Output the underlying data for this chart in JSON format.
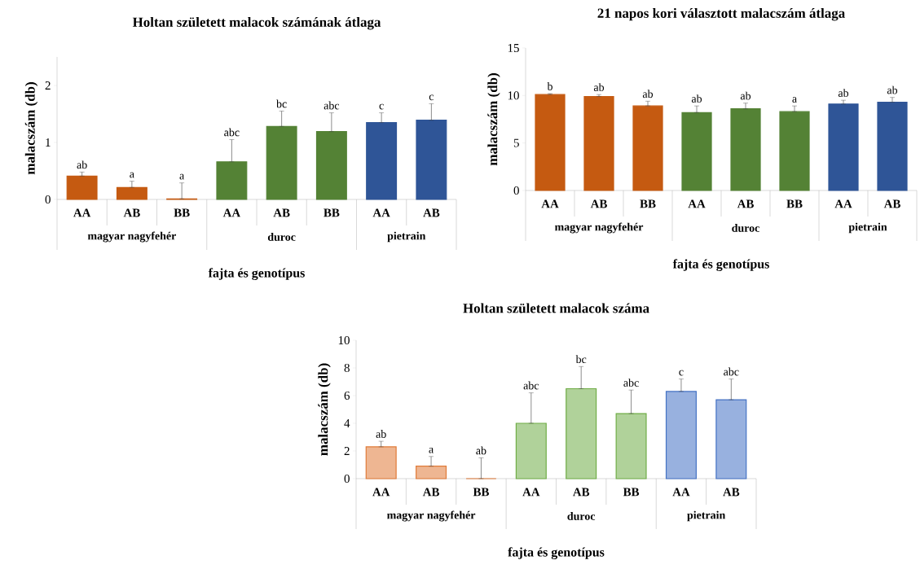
{
  "chart_data": [
    {
      "type": "bar",
      "title": "Holtan született malacok számának átlaga",
      "xlabel": "fajta és genotípus",
      "ylabel": "malacszám (db)",
      "categories": [
        "AA",
        "AB",
        "BB",
        "AA",
        "AB",
        "BB",
        "AA",
        "AB"
      ],
      "values": [
        0.41,
        0.21,
        0.01,
        0.66,
        1.28,
        1.19,
        1.35,
        1.39
      ],
      "errors": [
        [
          0.41,
          0.48
        ],
        [
          0.21,
          0.32
        ],
        [
          0.01,
          0.29
        ],
        [
          0.66,
          1.05
        ],
        [
          1.28,
          1.55
        ],
        [
          1.19,
          1.52
        ],
        [
          1.35,
          1.52
        ],
        [
          1.39,
          1.68
        ]
      ],
      "colors": [
        "#c55a11",
        "#c55a11",
        "#c55a11",
        "#548235",
        "#548235",
        "#548235",
        "#2f5597",
        "#2f5597"
      ],
      "value_labels": [
        "ab",
        "a",
        "a",
        "abc",
        "bc",
        "abc",
        "c",
        "c"
      ],
      "annotations": [
        "magyar nagyfehér",
        "duroc",
        "pietrain"
      ],
      "ylim": [
        0,
        2.5
      ],
      "yticks": [
        0,
        1,
        2
      ]
    },
    {
      "type": "bar",
      "title": "21 napos kori választott malacszám átlaga",
      "xlabel": "fajta és genotípus",
      "ylabel": "malacszám (db)",
      "categories": [
        "AA",
        "AB",
        "BB",
        "AA",
        "AB",
        "BB",
        "AA",
        "AB"
      ],
      "values": [
        10.1,
        9.9,
        8.9,
        8.2,
        8.6,
        8.3,
        9.1,
        9.3
      ],
      "errors": [
        [
          10.1,
          10.2
        ],
        [
          9.9,
          10.1
        ],
        [
          8.9,
          9.4
        ],
        [
          8.2,
          8.9
        ],
        [
          8.6,
          9.2
        ],
        [
          8.3,
          8.9
        ],
        [
          9.1,
          9.5
        ],
        [
          9.3,
          9.8
        ]
      ],
      "colors": [
        "#c55a11",
        "#c55a11",
        "#c55a11",
        "#548235",
        "#548235",
        "#548235",
        "#2f5597",
        "#2f5597"
      ],
      "value_labels": [
        "b",
        "ab",
        "ab",
        "ab",
        "ab",
        "a",
        "ab",
        "ab"
      ],
      "annotations": [
        "magyar nagyfehér",
        "duroc",
        "pietrain"
      ],
      "ylim": [
        0,
        15
      ],
      "yticks": [
        0,
        5,
        10,
        15
      ]
    },
    {
      "type": "bar",
      "title": "Holtan született malacok száma",
      "xlabel": "fajta és genotípus",
      "ylabel": "malacszám (db)",
      "categories": [
        "AA",
        "AB",
        "BB",
        "AA",
        "AB",
        "BB",
        "AA",
        "AB"
      ],
      "values": [
        2.3,
        0.9,
        0,
        4.0,
        6.5,
        4.7,
        6.3,
        5.7
      ],
      "errors": [
        [
          2.3,
          2.7
        ],
        [
          0.9,
          1.6
        ],
        [
          0,
          1.5
        ],
        [
          4.0,
          6.2
        ],
        [
          6.5,
          8.1
        ],
        [
          4.7,
          6.4
        ],
        [
          6.3,
          7.2
        ],
        [
          5.7,
          7.2
        ]
      ],
      "colors": [
        "#e07b39",
        "#e07b39",
        "#e07b39",
        "#70ad47",
        "#70ad47",
        "#70ad47",
        "#4472c4",
        "#4472c4"
      ],
      "value_labels": [
        "ab",
        "a",
        "ab",
        "abc",
        "bc",
        "abc",
        "c",
        "abc"
      ],
      "annotations": [
        "magyar nagyfehér",
        "duroc",
        "pietrain"
      ],
      "ylim": [
        0,
        10
      ],
      "yticks": [
        0,
        2,
        4,
        6,
        8,
        10
      ]
    }
  ]
}
